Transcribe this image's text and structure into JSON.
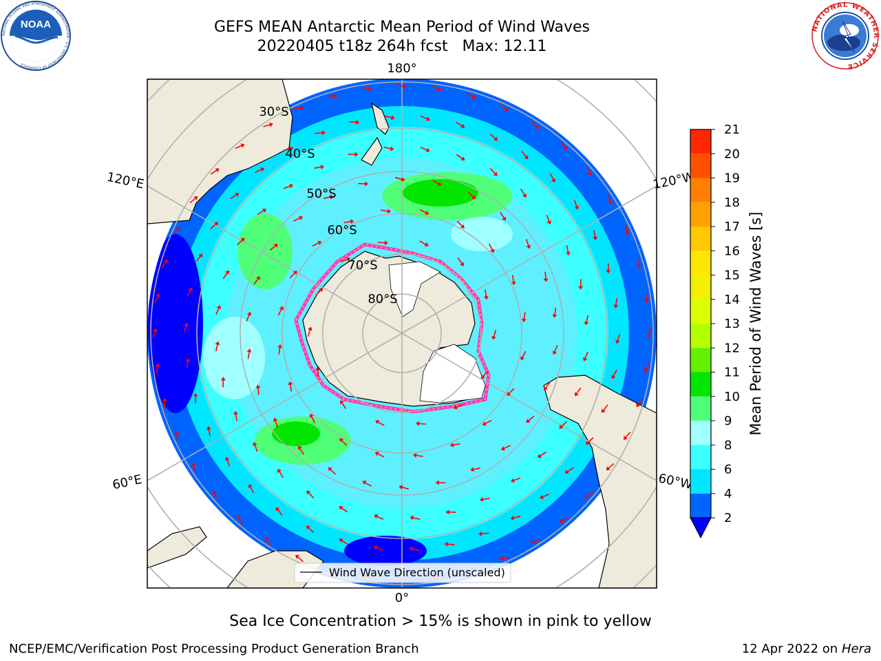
{
  "header": {
    "title_line1": "GEFS MEAN Antarctic Mean Period of Wind Waves",
    "title_line2": "20220405 t18z 264h fcst   Max: 12.11"
  },
  "logos": {
    "noaa": {
      "text": "NOAA",
      "ring_text": "NATIONAL OCEANIC AND ATMOSPHERIC ADMINISTRATION · U.S. DEPARTMENT OF COMMERCE"
    },
    "nws": {
      "ring_text": "NATIONAL WEATHER SERVICE"
    }
  },
  "map": {
    "projection": "south polar stereographic",
    "lon_labels": {
      "top": "180°",
      "upper_left": "120°E",
      "upper_right": "120°W",
      "lower_left": "60°E",
      "lower_right": "60°W",
      "bottom": "0°"
    },
    "lat_labels": [
      "30°S",
      "40°S",
      "50°S",
      "60°S",
      "70°S",
      "80°S"
    ],
    "legend_label": "Wind Wave Direction (unscaled)",
    "colors": {
      "land": "#efebdc",
      "antarctic_ice_shelf": "#ffffff",
      "gridline": "#b0b0b0",
      "arrow": "#ff0000",
      "sea_ice_edge": [
        "#ff33cc",
        "#cc33ff",
        "#ffa040"
      ]
    }
  },
  "colorbar": {
    "label": "Mean Period of Wind Waves [s]",
    "min": 2,
    "max": 21,
    "extend": "min",
    "ticks": [
      "2",
      "4",
      "6",
      "8",
      "9",
      "10",
      "11",
      "12",
      "13",
      "14",
      "15",
      "16",
      "17",
      "18",
      "19",
      "20",
      "21"
    ],
    "colors": [
      "#0064ff",
      "#00e6ff",
      "#3cffff",
      "#a0ffff",
      "#50ff78",
      "#00e600",
      "#64f000",
      "#b4ff00",
      "#dcff00",
      "#f0f000",
      "#ffe600",
      "#ffc800",
      "#ffa000",
      "#ff8000",
      "#ff5000",
      "#ff2800",
      "#ff0000"
    ],
    "extend_color": "#0000ff"
  },
  "subtitle": "Sea Ice Concentration > 15% is shown in pink to yellow",
  "footer": {
    "left": "NCEP/EMC/Verification Post Processing Product Generation Branch",
    "right_date": "12 Apr 2022 on",
    "right_host": "Hera"
  }
}
